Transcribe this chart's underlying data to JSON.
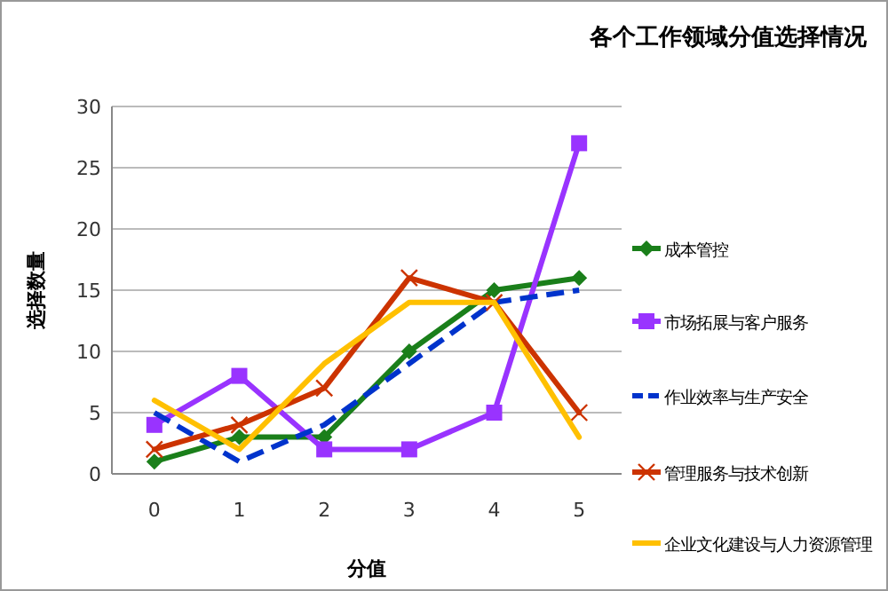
{
  "chart_data": {
    "type": "line",
    "title": "各个工作领域分值选择情况",
    "xlabel": "分值",
    "ylabel": "选择数量",
    "categories": [
      "0",
      "1",
      "2",
      "3",
      "4",
      "5"
    ],
    "series": [
      {
        "name": "成本管控",
        "color": "#1a7f1a",
        "marker": "diamond",
        "values": [
          1,
          3,
          3,
          10,
          15,
          16
        ]
      },
      {
        "name": "市场拓展与客户服务",
        "color": "#9933ff",
        "marker": "square",
        "values": [
          4,
          8,
          2,
          2,
          5,
          27
        ]
      },
      {
        "name": "作业效率与生产安全",
        "color": "#0033cc",
        "marker": "none",
        "line_style": "dashed",
        "values": [
          5,
          1,
          4,
          9,
          14,
          15
        ]
      },
      {
        "name": "管理服务与技术创新",
        "color": "#cc3300",
        "marker": "cross",
        "values": [
          2,
          4,
          7,
          16,
          14,
          5
        ]
      },
      {
        "name": "企业文化建设与人力资源管理",
        "color": "#ffc000",
        "marker": "none",
        "values": [
          6,
          2,
          9,
          14,
          14,
          3
        ]
      }
    ],
    "ylim": [
      0,
      30
    ],
    "yticks": [
      0,
      5,
      10,
      15,
      20,
      25,
      30
    ],
    "grid": "y",
    "legend": "right"
  }
}
